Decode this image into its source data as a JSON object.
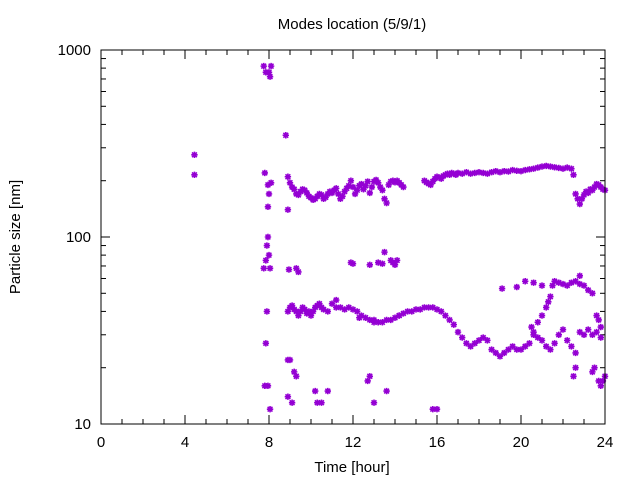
{
  "chart_data": {
    "type": "scatter",
    "title": "Modes location (5/9/1)",
    "xlabel": "Time [hour]",
    "ylabel": "Particle size [nm]",
    "xlim": [
      0,
      24
    ],
    "ylim": [
      10,
      1000
    ],
    "yscale": "log",
    "grid": false,
    "legend": "none",
    "marker_color": "#9400d3",
    "x_ticks": [
      0,
      4,
      8,
      12,
      16,
      20,
      24
    ],
    "x_tick_labels": [
      "0",
      "4",
      "8",
      "12",
      "16",
      "20",
      "24"
    ],
    "y_ticks": [
      10,
      100,
      1000
    ],
    "y_tick_labels": [
      "10",
      "100",
      "1000"
    ],
    "series": [
      {
        "points": [
          [
            4.45,
            275
          ],
          [
            4.45,
            215
          ],
          [
            7.75,
            820
          ],
          [
            7.85,
            760
          ],
          [
            8.0,
            760
          ],
          [
            8.1,
            820
          ],
          [
            8.05,
            720
          ],
          [
            8.8,
            350
          ],
          [
            7.8,
            220
          ],
          [
            7.95,
            190
          ],
          [
            8.1,
            195
          ],
          [
            8.0,
            170
          ],
          [
            7.95,
            145
          ],
          [
            8.9,
            210
          ],
          [
            9.0,
            195
          ],
          [
            9.1,
            185
          ],
          [
            9.2,
            180
          ],
          [
            9.3,
            170
          ],
          [
            9.4,
            168
          ],
          [
            9.5,
            175
          ],
          [
            9.6,
            180
          ],
          [
            9.7,
            178
          ],
          [
            9.8,
            172
          ],
          [
            9.9,
            165
          ],
          [
            10.0,
            162
          ],
          [
            10.1,
            158
          ],
          [
            10.2,
            160
          ],
          [
            10.3,
            165
          ],
          [
            10.4,
            170
          ],
          [
            10.5,
            168
          ],
          [
            10.6,
            160
          ],
          [
            10.7,
            163
          ],
          [
            10.8,
            170
          ],
          [
            10.9,
            175
          ],
          [
            11.0,
            172
          ],
          [
            11.1,
            178
          ],
          [
            11.2,
            182
          ],
          [
            11.3,
            170
          ],
          [
            11.4,
            160
          ],
          [
            11.5,
            165
          ],
          [
            11.6,
            175
          ],
          [
            11.7,
            182
          ],
          [
            11.8,
            188
          ],
          [
            11.9,
            200
          ],
          [
            12.0,
            185
          ],
          [
            12.1,
            170
          ],
          [
            12.2,
            178
          ],
          [
            12.3,
            188
          ],
          [
            12.4,
            192
          ],
          [
            12.5,
            180
          ],
          [
            12.6,
            188
          ],
          [
            12.7,
            198
          ],
          [
            12.8,
            172
          ],
          [
            12.9,
            185
          ],
          [
            13.0,
            198
          ],
          [
            13.1,
            202
          ],
          [
            13.2,
            195
          ],
          [
            13.3,
            185
          ],
          [
            13.4,
            178
          ],
          [
            13.5,
            160
          ],
          [
            13.6,
            152
          ],
          [
            13.7,
            190
          ],
          [
            13.8,
            198
          ],
          [
            13.9,
            200
          ],
          [
            14.0,
            196
          ],
          [
            14.1,
            200
          ],
          [
            14.2,
            195
          ],
          [
            14.3,
            190
          ],
          [
            14.4,
            185
          ],
          [
            15.4,
            200
          ],
          [
            15.5,
            196
          ],
          [
            15.6,
            193
          ],
          [
            15.7,
            190
          ],
          [
            15.8,
            198
          ],
          [
            15.9,
            205
          ],
          [
            16.0,
            210
          ],
          [
            16.1,
            208
          ],
          [
            16.2,
            205
          ],
          [
            16.3,
            212
          ],
          [
            16.4,
            215
          ],
          [
            16.5,
            218
          ],
          [
            16.6,
            215
          ],
          [
            16.7,
            220
          ],
          [
            16.8,
            218
          ],
          [
            16.9,
            215
          ],
          [
            17.0,
            220
          ],
          [
            17.2,
            218
          ],
          [
            17.4,
            222
          ],
          [
            17.6,
            218
          ],
          [
            17.8,
            220
          ],
          [
            18.0,
            222
          ],
          [
            18.2,
            220
          ],
          [
            18.4,
            218
          ],
          [
            18.6,
            222
          ],
          [
            18.8,
            225
          ],
          [
            19.0,
            222
          ],
          [
            19.2,
            225
          ],
          [
            19.4,
            224
          ],
          [
            19.6,
            228
          ],
          [
            19.8,
            226
          ],
          [
            20.0,
            225
          ],
          [
            20.2,
            228
          ],
          [
            20.4,
            230
          ],
          [
            20.6,
            232
          ],
          [
            20.8,
            235
          ],
          [
            21.0,
            238
          ],
          [
            21.2,
            240
          ],
          [
            21.4,
            238
          ],
          [
            21.6,
            236
          ],
          [
            21.8,
            234
          ],
          [
            22.0,
            232
          ],
          [
            22.2,
            235
          ],
          [
            22.4,
            232
          ],
          [
            22.5,
            215
          ],
          [
            22.6,
            170
          ],
          [
            22.7,
            160
          ],
          [
            22.8,
            150
          ],
          [
            22.9,
            160
          ],
          [
            23.0,
            168
          ],
          [
            23.1,
            175
          ],
          [
            23.2,
            172
          ],
          [
            23.3,
            180
          ],
          [
            23.4,
            178
          ],
          [
            23.5,
            185
          ],
          [
            23.6,
            192
          ],
          [
            23.7,
            190
          ],
          [
            23.8,
            185
          ],
          [
            23.9,
            180
          ],
          [
            24.0,
            178
          ],
          [
            8.9,
            140
          ],
          [
            7.95,
            100
          ],
          [
            7.9,
            90
          ],
          [
            8.0,
            80
          ],
          [
            7.85,
            75
          ],
          [
            7.75,
            68
          ],
          [
            8.05,
            68
          ],
          [
            8.95,
            67
          ],
          [
            9.3,
            68
          ],
          [
            9.4,
            65
          ],
          [
            11.9,
            73
          ],
          [
            12.0,
            72
          ],
          [
            12.8,
            71
          ],
          [
            13.2,
            73
          ],
          [
            13.4,
            72
          ],
          [
            13.5,
            83
          ],
          [
            13.8,
            75
          ],
          [
            13.9,
            73
          ],
          [
            14.1,
            75
          ],
          [
            14.0,
            71
          ],
          [
            8.9,
            40
          ],
          [
            9.0,
            42
          ],
          [
            9.1,
            43
          ],
          [
            9.2,
            41
          ],
          [
            9.3,
            40
          ],
          [
            9.4,
            38
          ],
          [
            9.5,
            40
          ],
          [
            9.6,
            42
          ],
          [
            9.7,
            41
          ],
          [
            9.8,
            39
          ],
          [
            9.9,
            40
          ],
          [
            10.0,
            38
          ],
          [
            10.1,
            40
          ],
          [
            10.2,
            42
          ],
          [
            10.3,
            43
          ],
          [
            10.4,
            44
          ],
          [
            10.5,
            42
          ],
          [
            10.6,
            41
          ],
          [
            10.8,
            40
          ],
          [
            11.0,
            44
          ],
          [
            11.2,
            46
          ],
          [
            11.4,
            42
          ],
          [
            11.6,
            41
          ],
          [
            11.8,
            42
          ],
          [
            12.0,
            41
          ],
          [
            12.2,
            40
          ],
          [
            12.4,
            38
          ],
          [
            12.6,
            37
          ],
          [
            12.8,
            36
          ],
          [
            13.0,
            36
          ],
          [
            13.2,
            35
          ],
          [
            13.4,
            35
          ],
          [
            13.6,
            36
          ],
          [
            13.8,
            36
          ],
          [
            14.0,
            37
          ],
          [
            14.2,
            38
          ],
          [
            14.4,
            39
          ],
          [
            14.6,
            40
          ],
          [
            14.8,
            40
          ],
          [
            15.0,
            41
          ],
          [
            15.2,
            41
          ],
          [
            15.4,
            42
          ],
          [
            15.6,
            42
          ],
          [
            15.8,
            42
          ],
          [
            16.0,
            41
          ],
          [
            16.2,
            40
          ],
          [
            16.4,
            38
          ],
          [
            16.6,
            36
          ],
          [
            16.8,
            34
          ],
          [
            17.0,
            31
          ],
          [
            17.2,
            29
          ],
          [
            17.4,
            27
          ],
          [
            17.6,
            26
          ],
          [
            17.8,
            27
          ],
          [
            18.0,
            28
          ],
          [
            18.2,
            29
          ],
          [
            18.4,
            28
          ],
          [
            18.6,
            25
          ],
          [
            18.8,
            24
          ],
          [
            19.0,
            23
          ],
          [
            19.2,
            24
          ],
          [
            19.4,
            25
          ],
          [
            19.6,
            26
          ],
          [
            19.8,
            25
          ],
          [
            20.0,
            25
          ],
          [
            20.2,
            26
          ],
          [
            20.4,
            27
          ],
          [
            20.6,
            30
          ],
          [
            20.8,
            35
          ],
          [
            21.0,
            38
          ],
          [
            21.2,
            42
          ],
          [
            21.3,
            45
          ],
          [
            21.4,
            48
          ],
          [
            21.5,
            55
          ],
          [
            21.6,
            58
          ],
          [
            21.8,
            57
          ],
          [
            22.0,
            56
          ],
          [
            22.2,
            55
          ],
          [
            22.4,
            57
          ],
          [
            22.6,
            58
          ],
          [
            22.8,
            56
          ],
          [
            23.0,
            55
          ],
          [
            23.2,
            52
          ],
          [
            23.4,
            50
          ],
          [
            19.1,
            53
          ],
          [
            19.8,
            54
          ],
          [
            20.2,
            58
          ],
          [
            20.6,
            57
          ],
          [
            21.0,
            55
          ],
          [
            22.8,
            62
          ],
          [
            23.6,
            38
          ],
          [
            23.7,
            36
          ],
          [
            23.8,
            33
          ],
          [
            20.5,
            33
          ],
          [
            20.6,
            31
          ],
          [
            20.8,
            29
          ],
          [
            21.0,
            28
          ],
          [
            21.2,
            26
          ],
          [
            21.4,
            25
          ],
          [
            21.6,
            27
          ],
          [
            21.8,
            30
          ],
          [
            22.0,
            32
          ],
          [
            22.2,
            28
          ],
          [
            22.4,
            26
          ],
          [
            22.6,
            24
          ],
          [
            22.8,
            31
          ],
          [
            23.0,
            30
          ],
          [
            23.2,
            32
          ],
          [
            23.4,
            30
          ],
          [
            23.6,
            31
          ],
          [
            23.8,
            29
          ],
          [
            11.2,
            42
          ],
          [
            12.3,
            37
          ],
          [
            13.0,
            35
          ],
          [
            14.2,
            38
          ],
          [
            7.9,
            40
          ],
          [
            7.85,
            27
          ],
          [
            8.9,
            22
          ],
          [
            9.0,
            22
          ],
          [
            9.2,
            19
          ],
          [
            9.3,
            18
          ],
          [
            7.8,
            16
          ],
          [
            7.95,
            16
          ],
          [
            8.05,
            12
          ],
          [
            8.9,
            14
          ],
          [
            9.1,
            13
          ],
          [
            10.2,
            15
          ],
          [
            10.3,
            13
          ],
          [
            10.5,
            13
          ],
          [
            10.8,
            15
          ],
          [
            12.7,
            17
          ],
          [
            12.8,
            18
          ],
          [
            13.0,
            13
          ],
          [
            13.6,
            15
          ],
          [
            15.8,
            12
          ],
          [
            16.0,
            12
          ],
          [
            23.5,
            20
          ],
          [
            23.7,
            17
          ],
          [
            23.8,
            16
          ],
          [
            23.9,
            17
          ],
          [
            24.0,
            18
          ],
          [
            23.4,
            19
          ],
          [
            22.5,
            18
          ],
          [
            22.6,
            20
          ]
        ]
      }
    ]
  }
}
